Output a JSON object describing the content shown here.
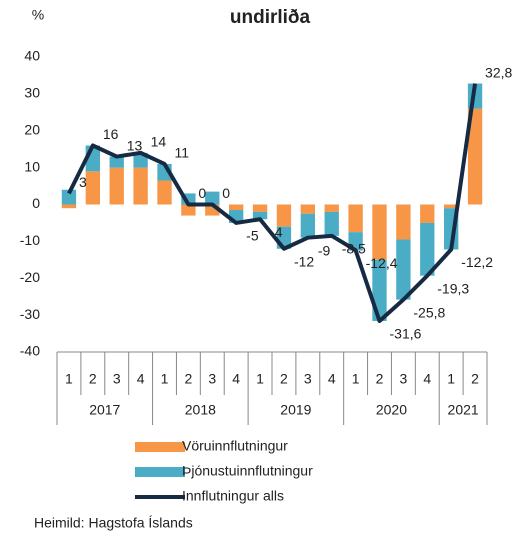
{
  "chart_data": {
    "type": "stacked_bar_line",
    "title": "undirliða",
    "y_label": "%",
    "source": "Heimild: Hagstofa Íslands",
    "groups": [
      {
        "name": "2017",
        "categories": [
          "1",
          "2",
          "3",
          "4"
        ]
      },
      {
        "name": "2018",
        "categories": [
          "1",
          "2",
          "3",
          "4"
        ]
      },
      {
        "name": "2019",
        "categories": [
          "1",
          "2",
          "3",
          "4"
        ]
      },
      {
        "name": "2020",
        "categories": [
          "1",
          "2",
          "3",
          "4"
        ]
      },
      {
        "name": "2021",
        "categories": [
          "1",
          "2"
        ]
      }
    ],
    "ylim": [
      -40,
      40
    ],
    "yticks": [
      -40,
      -30,
      -20,
      -10,
      0,
      10,
      20,
      30,
      40
    ],
    "series": [
      {
        "name": "Vöruinnflutningur",
        "kind": "bar",
        "color": "#f79646",
        "values": [
          -1,
          9,
          10,
          10,
          6.5,
          -3,
          -3,
          -1.5,
          -2,
          -6,
          -2.5,
          -2,
          -7.5,
          -15,
          -9.5,
          -5,
          -1,
          26
        ]
      },
      {
        "name": "Þjónustuinnflutningur",
        "kind": "bar",
        "color": "#4bacc6",
        "values": [
          4,
          7,
          3,
          4,
          4.5,
          3,
          3.5,
          -3.5,
          -2,
          -6,
          -6.5,
          -6.5,
          -5,
          -16.6,
          -16.3,
          -14.3,
          -11.2,
          6.8
        ]
      },
      {
        "name": "Innflutningur alls",
        "kind": "line",
        "color": "#172a43",
        "values": [
          3,
          16,
          13,
          14,
          11,
          0,
          0,
          -5,
          -4,
          -12,
          -9,
          -8.5,
          -12.4,
          -31.6,
          -25.8,
          -19.3,
          -12.2,
          32.8
        ],
        "value_labels": [
          "3",
          "16",
          "13",
          "14",
          "11",
          "0",
          "0",
          "-5",
          "-4",
          "-12",
          "-9",
          "-8,5",
          "-12,4",
          "-31,6",
          "-25,8",
          "-19,3",
          "-12,2",
          "32,8"
        ]
      }
    ]
  }
}
